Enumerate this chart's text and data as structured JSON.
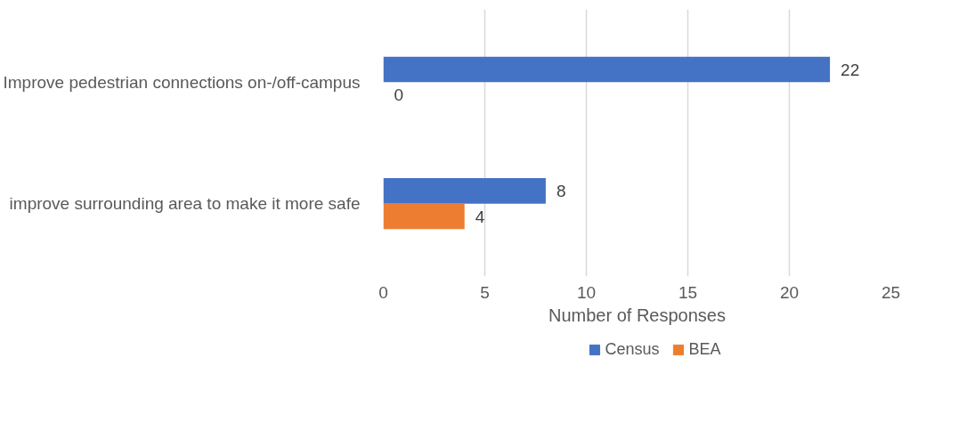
{
  "chart_data": {
    "type": "bar",
    "orientation": "horizontal",
    "xlabel": "Number of Responses",
    "categories": [
      "Improve pedestrian connections on-/off-campus",
      "improve surrounding area to make it more safe"
    ],
    "series": [
      {
        "name": "Census",
        "color": "#4472c4",
        "values": [
          22,
          8
        ]
      },
      {
        "name": "BEA",
        "color": "#ed7d31",
        "values": [
          0,
          4
        ]
      }
    ],
    "xlim": [
      0,
      25
    ],
    "xticks": [
      0,
      5,
      10,
      15,
      20,
      25
    ],
    "grid": "x",
    "legend": "bottom",
    "data_labels": true
  }
}
